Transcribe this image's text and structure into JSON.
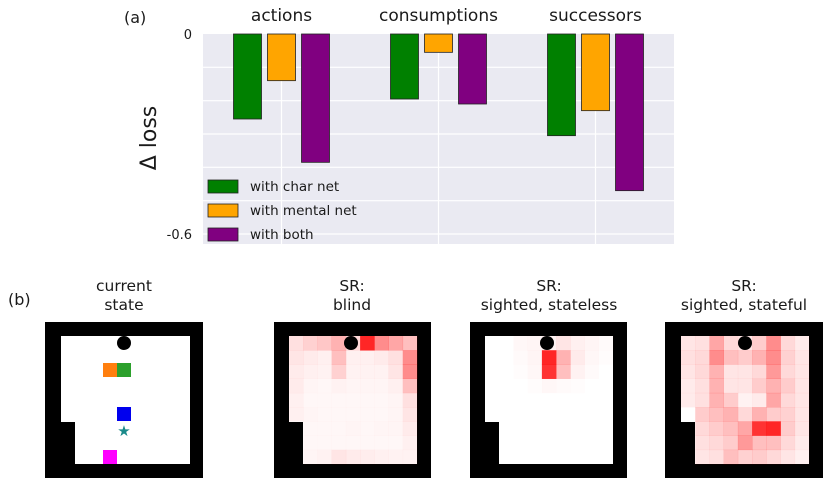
{
  "panel_a_label": "(a)",
  "panel_b_label": "(b)",
  "chart_data": {
    "type": "bar",
    "categories": [
      "actions",
      "consumptions",
      "successors"
    ],
    "series": [
      {
        "name": "with char net",
        "color": "#008000",
        "values": [
          -0.255,
          -0.195,
          -0.305
        ]
      },
      {
        "name": "with mental net",
        "color": "#FFA500",
        "values": [
          -0.14,
          -0.055,
          -0.23
        ]
      },
      {
        "name": "with both",
        "color": "#800080",
        "values": [
          -0.385,
          -0.21,
          -0.47
        ]
      }
    ],
    "title": "",
    "xlabel": "",
    "ylabel": "Δ loss",
    "ylim": [
      -0.63,
      0
    ],
    "yticks": [
      0,
      -0.6
    ],
    "ytick_labels": [
      "0",
      "-0.6"
    ],
    "grid": true,
    "legend_position": "lower-left"
  },
  "sr_panels": [
    {
      "title_line1": "current",
      "title_line2": "state"
    },
    {
      "title_line1": "SR:",
      "title_line2": "blind"
    },
    {
      "title_line1": "SR:",
      "title_line2": "sighted, stateless"
    },
    {
      "title_line1": "SR:",
      "title_line2": "sighted, stateful"
    }
  ]
}
